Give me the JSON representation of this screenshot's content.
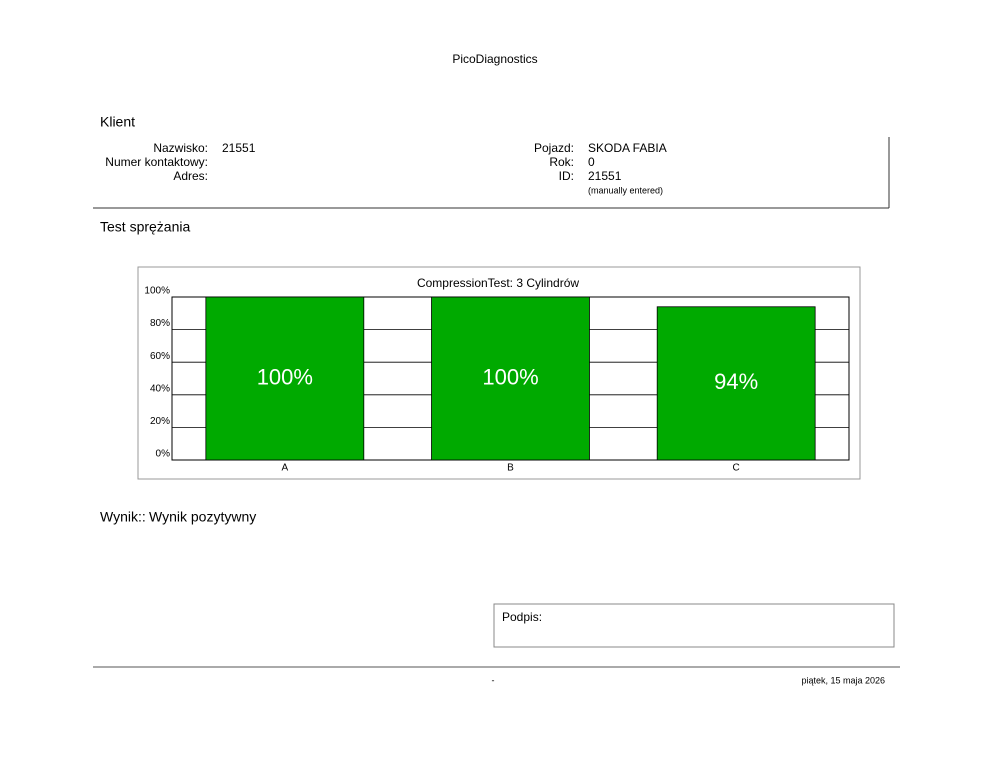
{
  "header": {
    "title": "PicoDiagnostics"
  },
  "client": {
    "heading": "Klient",
    "left": [
      {
        "label": "Nazwisko:",
        "value": "21551"
      },
      {
        "label": "Numer kontaktowy:"
      },
      {
        "label": "Adres:"
      }
    ],
    "right": [
      {
        "label": "Pojazd:",
        "value": "SKODA FABIA"
      },
      {
        "label": "Rok:",
        "value": "0"
      },
      {
        "label": "ID:",
        "value": "21551",
        "note": "(manually entered)"
      }
    ]
  },
  "section": {
    "heading": "Test sprężania"
  },
  "chart_data": {
    "type": "bar",
    "title": "CompressionTest: 3 Cylindrów",
    "categories": [
      "A",
      "B",
      "C"
    ],
    "values": [
      100,
      100,
      94
    ],
    "value_labels": [
      "100%",
      "100%",
      "94%"
    ],
    "color": "#00aa00",
    "ylim": [
      0,
      100
    ],
    "yticks": [
      {
        "value": 0,
        "label": "0%"
      },
      {
        "value": 20,
        "label": "20%"
      },
      {
        "value": 40,
        "label": "40%"
      },
      {
        "value": 60,
        "label": "60%"
      },
      {
        "value": 80,
        "label": "80%"
      },
      {
        "value": 100,
        "label": "100%"
      }
    ],
    "grid": true
  },
  "result": {
    "label": "Wynik::",
    "value": "Wynik pozytywny"
  },
  "signature": {
    "label": "Podpis:"
  },
  "footer": {
    "center": "-",
    "date": "piątek, 15 maja 2026"
  }
}
